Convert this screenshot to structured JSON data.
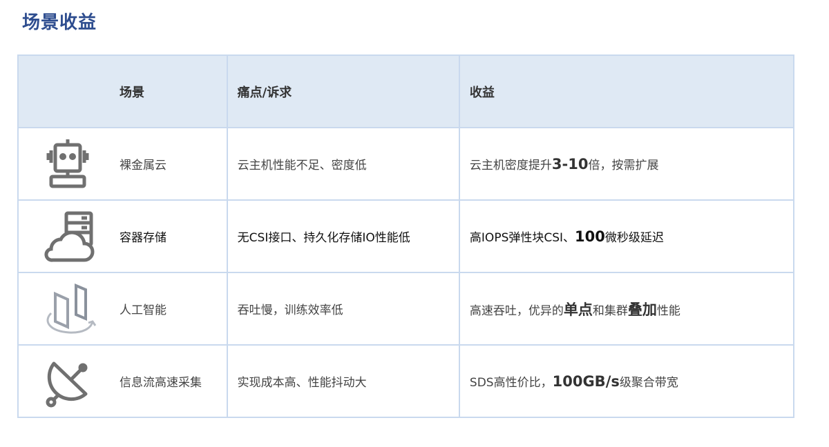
{
  "title": "场景收益",
  "headers": {
    "scene": "场景",
    "pain": "痛点/诉求",
    "benefit": "收益"
  },
  "rows": [
    {
      "icon": "robot-icon",
      "scene": "裸金属云",
      "pain": "云主机性能不足、密度低",
      "benefit": [
        {
          "text": "云主机密度提升",
          "bold": false
        },
        {
          "text": "3-10",
          "bold": true
        },
        {
          "text": "倍，按需扩展",
          "bold": false
        }
      ]
    },
    {
      "icon": "cloud-server-icon",
      "scene": "容器存储",
      "pain": "无CSI接口、持久化存储IO性能低",
      "benefit": [
        {
          "text": "高IOPS弹性块CSI、",
          "bold": false
        },
        {
          "text": "100",
          "bold": true
        },
        {
          "text": "微秒级延迟",
          "bold": false
        }
      ]
    },
    {
      "icon": "ai-panels-icon",
      "scene": "人工智能",
      "pain": "吞吐慢，训练效率低",
      "benefit": [
        {
          "text": "高速吞吐，优异的",
          "bold": false
        },
        {
          "text": "单点",
          "bold": true
        },
        {
          "text": "和集群",
          "bold": false
        },
        {
          "text": "叠加",
          "bold": true
        },
        {
          "text": "性能",
          "bold": false
        }
      ]
    },
    {
      "icon": "satellite-dish-icon",
      "scene": "信息流高速采集",
      "pain": "实现成本高、性能抖动大",
      "benefit": [
        {
          "text": "SDS高性价比，",
          "bold": false
        },
        {
          "text": "100GB/s",
          "bold": true
        },
        {
          "text": "级聚合带宽",
          "bold": false
        }
      ]
    }
  ]
}
